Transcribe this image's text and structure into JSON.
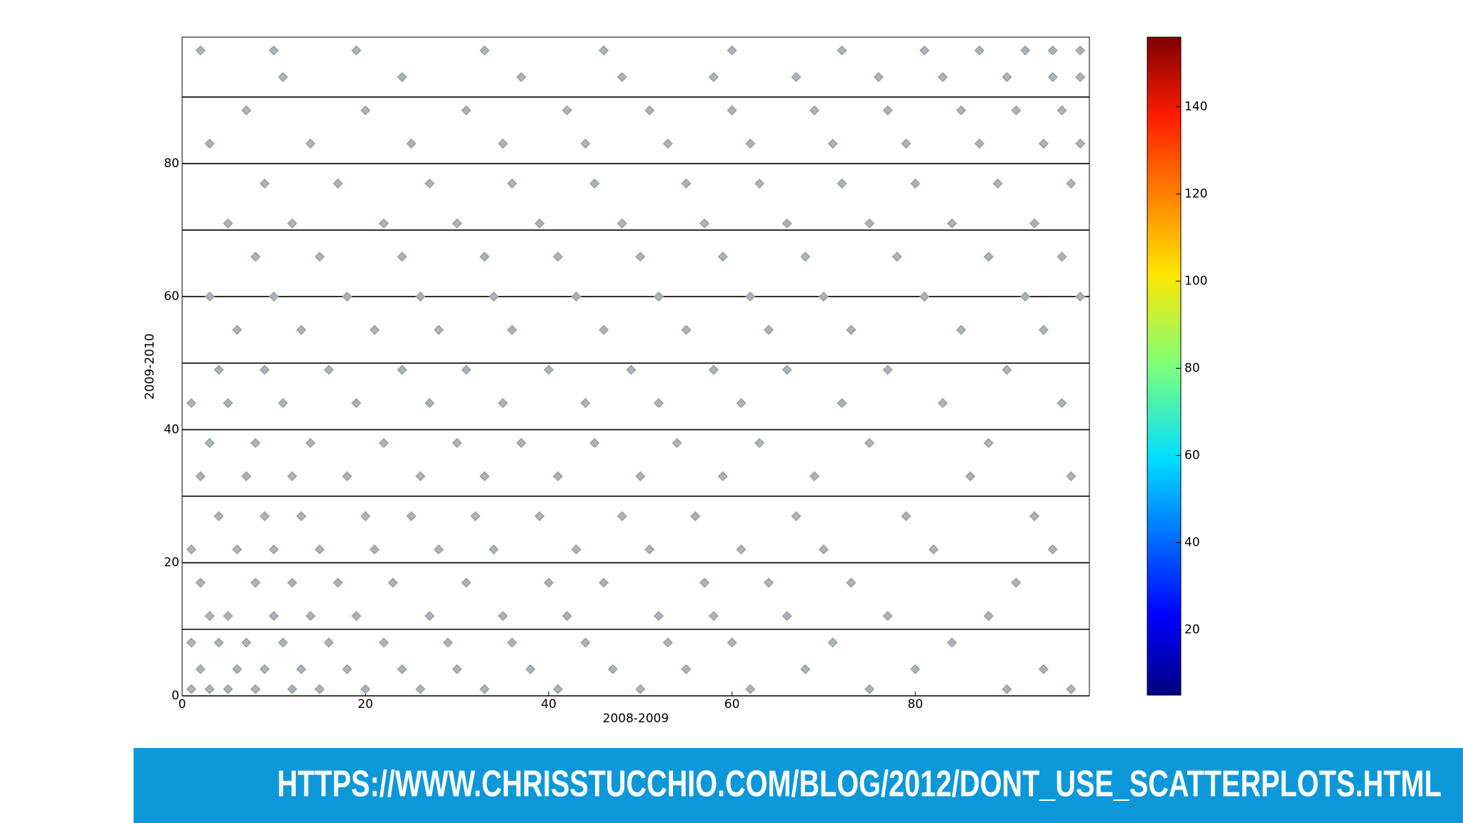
{
  "chart_data": {
    "type": "scatter",
    "x_label": "2008-2009",
    "y_label": "2009-2010",
    "color": "#9fb6cc",
    "edge_color": "#a89c84",
    "xlim": [
      0,
      99
    ],
    "ylim": [
      0,
      99
    ],
    "xticks": [
      0,
      20,
      40,
      60,
      80
    ],
    "yticks": [
      0,
      20,
      40,
      60,
      80
    ],
    "y_minor_grid": [
      10,
      30,
      50,
      70,
      90
    ],
    "grid": true,
    "x": [
      1,
      3,
      5,
      8,
      12,
      15,
      20,
      26,
      33,
      41,
      50,
      62,
      75,
      90,
      97,
      2,
      6,
      9,
      13,
      18,
      24,
      30,
      38,
      47,
      55,
      68,
      80,
      94,
      1,
      4,
      7,
      11,
      16,
      22,
      29,
      36,
      44,
      53,
      60,
      71,
      84,
      3,
      5,
      10,
      14,
      19,
      27,
      35,
      42,
      52,
      58,
      66,
      77,
      88,
      2,
      8,
      12,
      17,
      23,
      31,
      40,
      46,
      57,
      64,
      73,
      91,
      1,
      6,
      10,
      15,
      21,
      28,
      34,
      43,
      51,
      61,
      70,
      82,
      95,
      4,
      9,
      13,
      20,
      25,
      32,
      39,
      48,
      56,
      67,
      79,
      93,
      2,
      7,
      12,
      18,
      26,
      33,
      41,
      50,
      59,
      69,
      86,
      97,
      3,
      8,
      14,
      22,
      30,
      37,
      45,
      54,
      63,
      75,
      88,
      1,
      5,
      11,
      19,
      27,
      35,
      44,
      52,
      61,
      72,
      83,
      96,
      4,
      9,
      16,
      24,
      31,
      40,
      49,
      58,
      66,
      77,
      90,
      6,
      13,
      21,
      28,
      36,
      46,
      55,
      64,
      73,
      85,
      94,
      3,
      10,
      18,
      26,
      34,
      43,
      52,
      62,
      70,
      81,
      92,
      98,
      8,
      15,
      24,
      33,
      41,
      50,
      59,
      68,
      78,
      88,
      96,
      5,
      12,
      22,
      30,
      39,
      48,
      57,
      66,
      75,
      84,
      93,
      9,
      17,
      27,
      36,
      45,
      55,
      63,
      72,
      80,
      89,
      97,
      3,
      14,
      25,
      35,
      44,
      53,
      62,
      71,
      79,
      87,
      94,
      98,
      7,
      20,
      31,
      42,
      51,
      60,
      69,
      77,
      85,
      91,
      96,
      11,
      24,
      37,
      48,
      58,
      67,
      76,
      83,
      90,
      95,
      98,
      2,
      10,
      19,
      33,
      46,
      60,
      72,
      81,
      87,
      92,
      95,
      98
    ],
    "values": [
      1,
      1,
      1,
      1,
      1,
      1,
      1,
      1,
      1,
      1,
      1,
      1,
      1,
      1,
      1,
      4,
      4,
      4,
      4,
      4,
      4,
      4,
      4,
      4,
      4,
      4,
      4,
      4,
      8,
      8,
      8,
      8,
      8,
      8,
      8,
      8,
      8,
      8,
      8,
      8,
      8,
      12,
      12,
      12,
      12,
      12,
      12,
      12,
      12,
      12,
      12,
      12,
      12,
      12,
      17,
      17,
      17,
      17,
      17,
      17,
      17,
      17,
      17,
      17,
      17,
      17,
      22,
      22,
      22,
      22,
      22,
      22,
      22,
      22,
      22,
      22,
      22,
      22,
      22,
      27,
      27,
      27,
      27,
      27,
      27,
      27,
      27,
      27,
      27,
      27,
      27,
      33,
      33,
      33,
      33,
      33,
      33,
      33,
      33,
      33,
      33,
      33,
      33,
      38,
      38,
      38,
      38,
      38,
      38,
      38,
      38,
      38,
      38,
      38,
      44,
      44,
      44,
      44,
      44,
      44,
      44,
      44,
      44,
      44,
      44,
      44,
      49,
      49,
      49,
      49,
      49,
      49,
      49,
      49,
      49,
      49,
      49,
      55,
      55,
      55,
      55,
      55,
      55,
      55,
      55,
      55,
      55,
      55,
      60,
      60,
      60,
      60,
      60,
      60,
      60,
      60,
      60,
      60,
      60,
      60,
      66,
      66,
      66,
      66,
      66,
      66,
      66,
      66,
      66,
      66,
      66,
      71,
      71,
      71,
      71,
      71,
      71,
      71,
      71,
      71,
      71,
      71,
      77,
      77,
      77,
      77,
      77,
      77,
      77,
      77,
      77,
      77,
      77,
      83,
      83,
      83,
      83,
      83,
      83,
      83,
      83,
      83,
      83,
      83,
      83,
      88,
      88,
      88,
      88,
      88,
      88,
      88,
      88,
      88,
      88,
      88,
      93,
      93,
      93,
      93,
      93,
      93,
      93,
      93,
      93,
      93,
      93,
      97,
      97,
      97,
      97,
      97,
      97,
      97,
      97,
      97,
      97,
      97,
      97
    ],
    "colorbar": {
      "lim": [
        5,
        156
      ],
      "ticks": [
        20,
        40,
        60,
        80,
        100,
        120,
        140
      ]
    }
  },
  "footer": {
    "url": "HTTPS://WWW.CHRISSTUCCHIO.COM/BLOG/2012/DONT_USE_SCATTERPLOTS.HTML"
  }
}
